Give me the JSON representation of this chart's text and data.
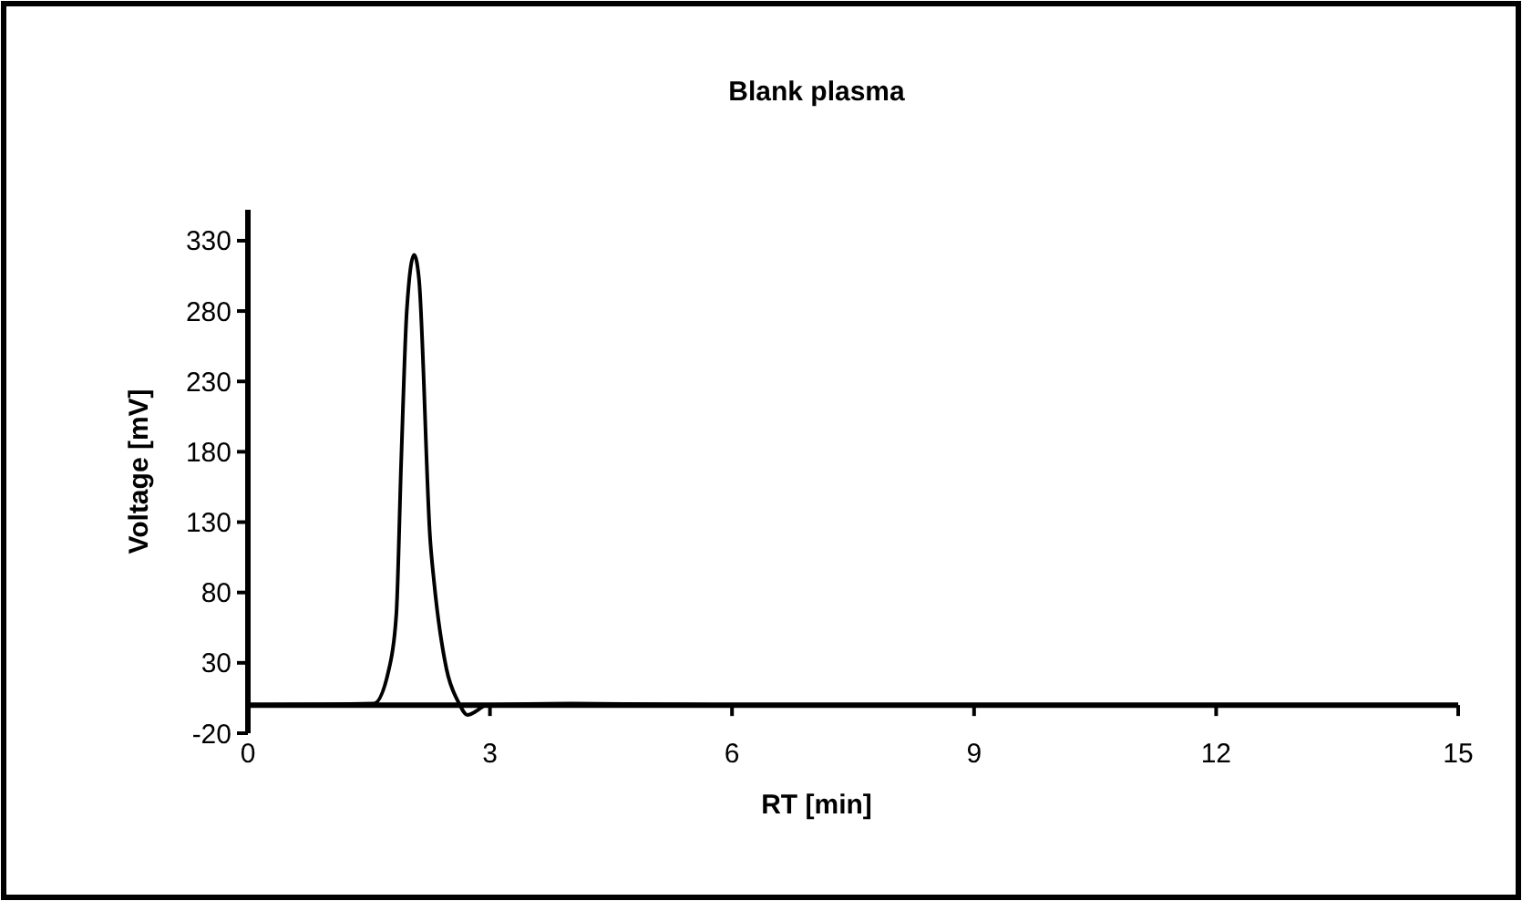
{
  "chart_data": {
    "type": "line",
    "title": "Blank plasma",
    "xlabel": "RT [min]",
    "ylabel": "Voltage [mV]",
    "series": [
      {
        "color": "#000000",
        "x": [
          0,
          1.56,
          1.75,
          1.84,
          1.9,
          1.97,
          2.06,
          2.12,
          2.26,
          2.31,
          2.46,
          2.61,
          2.72,
          2.84,
          2.95,
          4,
          6,
          9,
          12,
          15
        ],
        "values": [
          0,
          1,
          26,
          65,
          173,
          281,
          320,
          303,
          117,
          86,
          26,
          2,
          -7,
          -4,
          0,
          1,
          0,
          0,
          0,
          0
        ]
      }
    ],
    "xlim": [
      0,
      15
    ],
    "xticks": [
      0,
      3,
      6,
      9,
      12,
      15
    ],
    "ylim": [
      -20,
      352
    ],
    "yticks": [
      -20,
      30,
      80,
      130,
      180,
      230,
      280,
      330
    ],
    "grid": false,
    "marker": "none",
    "line_style": "solid"
  }
}
